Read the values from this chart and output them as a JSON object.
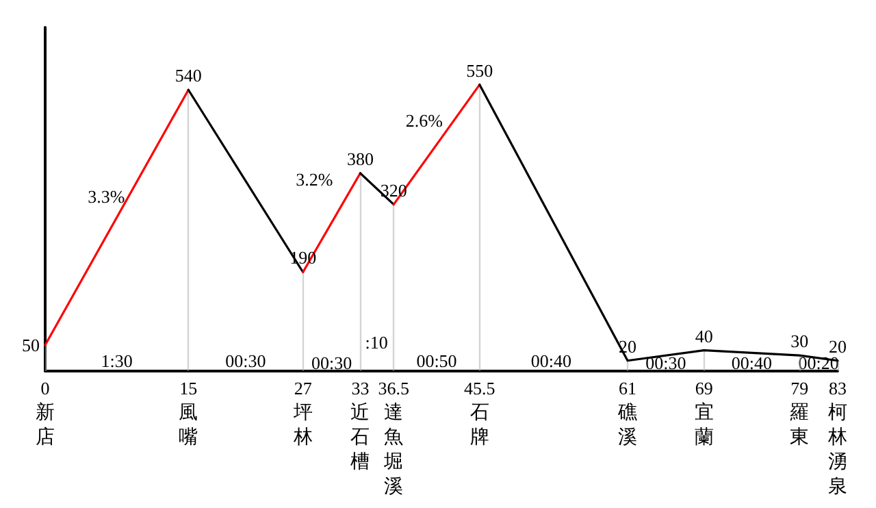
{
  "chart_data": {
    "type": "line",
    "marker": "none",
    "line_style": "solid",
    "grid": "x",
    "tick_labels": "x",
    "xlim": [
      0,
      83
    ],
    "xticks": [
      0,
      15,
      27,
      33,
      36.5,
      45.5,
      61,
      69,
      79,
      83
    ],
    "series": [
      {
        "color": "#ff0000",
        "x": [
          0,
          15
        ],
        "values": [
          50,
          540
        ],
        "value_labels": [
          "50",
          "540"
        ]
      },
      {
        "color": "#000000",
        "x": [
          15,
          27
        ],
        "values": [
          540,
          190
        ],
        "value_labels": [
          null,
          "190"
        ]
      },
      {
        "color": "#ff0000",
        "x": [
          27,
          33
        ],
        "values": [
          190,
          380
        ],
        "value_labels": [
          null,
          "380"
        ]
      },
      {
        "color": "#000000",
        "x": [
          33,
          36.5
        ],
        "values": [
          380,
          320
        ],
        "value_labels": [
          null,
          "320"
        ]
      },
      {
        "color": "#ff0000",
        "x": [
          36.5,
          45.5
        ],
        "values": [
          320,
          550
        ],
        "value_labels": [
          null,
          "550"
        ]
      },
      {
        "color": "#000000",
        "x": [
          45.5,
          61,
          69,
          79,
          83
        ],
        "values": [
          550,
          20,
          40,
          30,
          20
        ],
        "value_labels": [
          null,
          "20",
          "40",
          "30",
          "20"
        ]
      }
    ],
    "annotations": [
      "新店",
      "風嘴",
      "坪林",
      "近石槽",
      "達魚堀溪",
      "石牌",
      "礁溪",
      "宜蘭",
      "羅東",
      "柯林湧泉",
      "3.3%",
      "3.2%",
      "2.6%",
      "1:30",
      "00:30",
      "00:30",
      ":10",
      "00:50",
      "00:40",
      "00:30",
      "00:40",
      "00:20"
    ]
  }
}
